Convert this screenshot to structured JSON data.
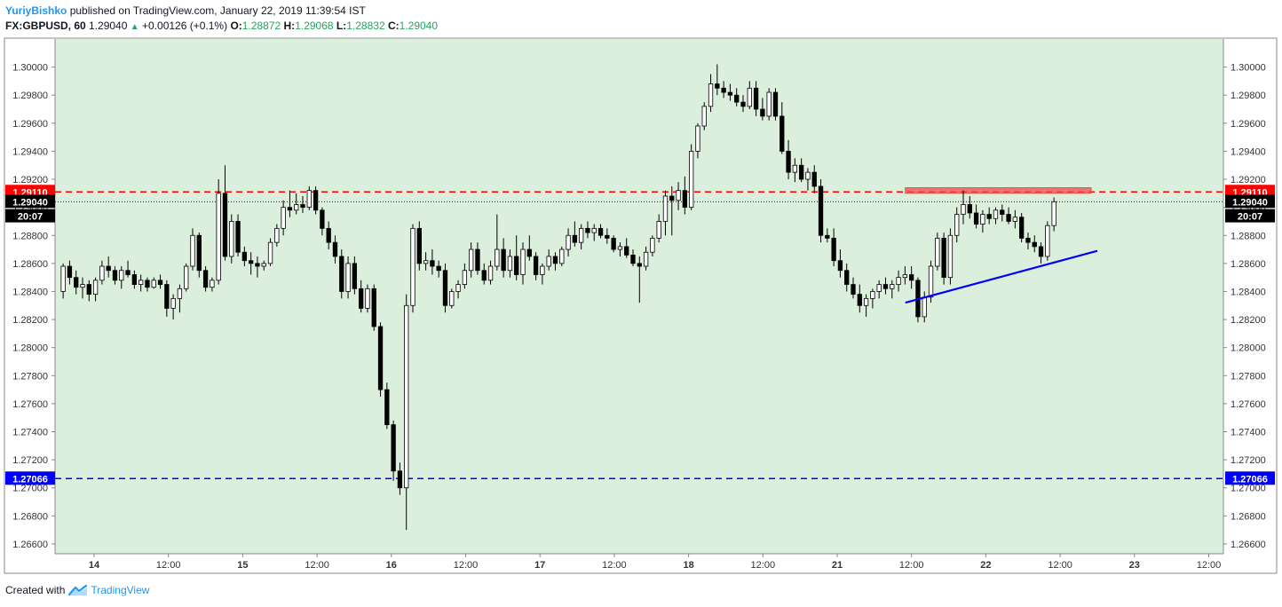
{
  "header": {
    "author": "YuriyBishko",
    "published_text": "published on TradingView.com, January 22, 2019 11:39:54 IST",
    "symbol": "FX:GBPUSD, 60",
    "last": "1.29040",
    "change": "+0.00126 (+0.1%)",
    "o_label": "O:",
    "o_value": "1.28872",
    "h_label": "H:",
    "h_value": "1.29068",
    "l_label": "L:",
    "l_value": "1.28832",
    "c_label": "C:",
    "c_value": "1.29040"
  },
  "footer": {
    "created_with": "Created with",
    "brand": "TradingView"
  },
  "colors": {
    "background": "#dcefdc",
    "up": "#ffffff",
    "down": "#000000",
    "resistance": "#ff0000",
    "support": "#0000ff",
    "zone": "#f24b4b",
    "trendline": "#0000ff"
  },
  "chart_data": {
    "type": "candlestick",
    "symbol": "GBPUSD",
    "timeframe": "60",
    "ylim": [
      1.2653,
      1.302
    ],
    "y_ticks": [
      "1.30000",
      "1.29800",
      "1.29600",
      "1.29400",
      "1.29200",
      "1.29000",
      "1.28800",
      "1.28600",
      "1.28400",
      "1.28200",
      "1.28000",
      "1.27800",
      "1.27600",
      "1.27400",
      "1.27200",
      "1.27000",
      "1.26800",
      "1.26600"
    ],
    "x_ticks": [
      "14",
      "12:00",
      "15",
      "12:00",
      "16",
      "12:00",
      "17",
      "12:00",
      "18",
      "12:00",
      "21",
      "12:00",
      "22",
      "12:00",
      "23",
      "12:00"
    ],
    "price_labels": [
      {
        "text": "1.29110",
        "value": 1.2911,
        "color": "#ff0000"
      },
      {
        "text": "1.29040",
        "value": 1.2904,
        "color": "#000000"
      },
      {
        "text": "20:07",
        "value": 1.28937,
        "color": "#000000"
      },
      {
        "text": "1.27066",
        "value": 1.27066,
        "color": "#0000ff"
      }
    ],
    "horizontal_lines": [
      {
        "value": 1.2911,
        "color": "#ff0000",
        "style": "dashed"
      },
      {
        "value": 1.27066,
        "color": "#0000ff",
        "style": "dashed"
      },
      {
        "value": 1.2904,
        "color": "#000000",
        "style": "dotted"
      }
    ],
    "zone": {
      "x_start": "21 11:00",
      "x_end": "22 17:00",
      "y_from": 1.291,
      "y_to": 1.2914
    },
    "trendline": {
      "start": {
        "x": "21 11:00",
        "y": 1.2832
      },
      "end": {
        "x": "22 18:00",
        "y": 1.2869
      }
    },
    "candles": [
      [
        1.284,
        1.286,
        1.2835,
        1.2858
      ],
      [
        1.2858,
        1.2862,
        1.2845,
        1.285
      ],
      [
        1.285,
        1.2855,
        1.2838,
        1.2843
      ],
      [
        1.2843,
        1.285,
        1.2835,
        1.2845
      ],
      [
        1.2845,
        1.2848,
        1.2833,
        1.2838
      ],
      [
        1.2838,
        1.285,
        1.2833,
        1.2848
      ],
      [
        1.2848,
        1.2862,
        1.2845,
        1.2858
      ],
      [
        1.2858,
        1.2865,
        1.285,
        1.2855
      ],
      [
        1.2855,
        1.2858,
        1.2845,
        1.2848
      ],
      [
        1.2848,
        1.2858,
        1.2842,
        1.2855
      ],
      [
        1.2855,
        1.2862,
        1.285,
        1.2852
      ],
      [
        1.2852,
        1.2855,
        1.2842,
        1.2845
      ],
      [
        1.2845,
        1.2852,
        1.284,
        1.2848
      ],
      [
        1.2848,
        1.285,
        1.284,
        1.2843
      ],
      [
        1.2843,
        1.285,
        1.2842,
        1.2848
      ],
      [
        1.2848,
        1.2852,
        1.2842,
        1.2845
      ],
      [
        1.2845,
        1.2848,
        1.2822,
        1.2828
      ],
      [
        1.2828,
        1.2838,
        1.282,
        1.2835
      ],
      [
        1.2835,
        1.2845,
        1.2825,
        1.2842
      ],
      [
        1.2842,
        1.286,
        1.284,
        1.2858
      ],
      [
        1.2858,
        1.2885,
        1.2855,
        1.288
      ],
      [
        1.288,
        1.2882,
        1.285,
        1.2855
      ],
      [
        1.2855,
        1.2858,
        1.284,
        1.2843
      ],
      [
        1.2843,
        1.285,
        1.284,
        1.2848
      ],
      [
        1.2848,
        1.292,
        1.2845,
        1.291
      ],
      [
        1.291,
        1.293,
        1.2862,
        1.2865
      ],
      [
        1.2865,
        1.2895,
        1.286,
        1.289
      ],
      [
        1.289,
        1.2895,
        1.2865,
        1.2868
      ],
      [
        1.2868,
        1.2872,
        1.2858,
        1.2862
      ],
      [
        1.2862,
        1.2868,
        1.2852,
        1.286
      ],
      [
        1.286,
        1.2865,
        1.285,
        1.2858
      ],
      [
        1.2858,
        1.2862,
        1.2855,
        1.286
      ],
      [
        1.286,
        1.2878,
        1.2858,
        1.2875
      ],
      [
        1.2875,
        1.2888,
        1.2872,
        1.2885
      ],
      [
        1.2885,
        1.2905,
        1.288,
        1.29
      ],
      [
        1.29,
        1.2912,
        1.2893,
        1.2898
      ],
      [
        1.2898,
        1.291,
        1.2895,
        1.2902
      ],
      [
        1.2902,
        1.2908,
        1.2896,
        1.29
      ],
      [
        1.29,
        1.2915,
        1.2898,
        1.2912
      ],
      [
        1.2912,
        1.2915,
        1.2895,
        1.2898
      ],
      [
        1.2898,
        1.29,
        1.288,
        1.2885
      ],
      [
        1.2885,
        1.289,
        1.287,
        1.2875
      ],
      [
        1.2875,
        1.288,
        1.286,
        1.2865
      ],
      [
        1.2865,
        1.287,
        1.2835,
        1.284
      ],
      [
        1.284,
        1.2865,
        1.2835,
        1.286
      ],
      [
        1.286,
        1.2865,
        1.2838,
        1.2842
      ],
      [
        1.2842,
        1.2848,
        1.2825,
        1.2828
      ],
      [
        1.2828,
        1.2845,
        1.2825,
        1.2842
      ],
      [
        1.2842,
        1.2845,
        1.2812,
        1.2815
      ],
      [
        1.2815,
        1.2818,
        1.2765,
        1.277
      ],
      [
        1.277,
        1.2775,
        1.2742,
        1.2745
      ],
      [
        1.2745,
        1.2748,
        1.2705,
        1.2712
      ],
      [
        1.2712,
        1.2718,
        1.2695,
        1.27
      ],
      [
        1.27,
        1.2838,
        1.267,
        1.283
      ],
      [
        1.283,
        1.2888,
        1.2825,
        1.2885
      ],
      [
        1.2885,
        1.289,
        1.2855,
        1.286
      ],
      [
        1.286,
        1.2868,
        1.2855,
        1.2862
      ],
      [
        1.2862,
        1.287,
        1.2852,
        1.2858
      ],
      [
        1.2858,
        1.2862,
        1.285,
        1.2855
      ],
      [
        1.2855,
        1.286,
        1.2825,
        1.283
      ],
      [
        1.283,
        1.2842,
        1.2828,
        1.284
      ],
      [
        1.284,
        1.2848,
        1.2835,
        1.2845
      ],
      [
        1.2845,
        1.286,
        1.2842,
        1.2855
      ],
      [
        1.2855,
        1.2875,
        1.285,
        1.287
      ],
      [
        1.287,
        1.2875,
        1.2852,
        1.2855
      ],
      [
        1.2855,
        1.286,
        1.2845,
        1.2848
      ],
      [
        1.2848,
        1.2862,
        1.2845,
        1.2858
      ],
      [
        1.2858,
        1.2895,
        1.2855,
        1.287
      ],
      [
        1.287,
        1.2878,
        1.285,
        1.2855
      ],
      [
        1.2855,
        1.287,
        1.285,
        1.2865
      ],
      [
        1.2865,
        1.288,
        1.2848,
        1.2852
      ],
      [
        1.2852,
        1.2875,
        1.2845,
        1.287
      ],
      [
        1.287,
        1.288,
        1.2862,
        1.2865
      ],
      [
        1.2865,
        1.2868,
        1.2848,
        1.2852
      ],
      [
        1.2852,
        1.286,
        1.2845,
        1.2858
      ],
      [
        1.2858,
        1.287,
        1.2855,
        1.2865
      ],
      [
        1.2865,
        1.2868,
        1.2855,
        1.286
      ],
      [
        1.286,
        1.2872,
        1.2858,
        1.287
      ],
      [
        1.287,
        1.2885,
        1.2865,
        1.288
      ],
      [
        1.288,
        1.289,
        1.2872,
        1.2875
      ],
      [
        1.2875,
        1.2888,
        1.287,
        1.2885
      ],
      [
        1.2885,
        1.289,
        1.2878,
        1.2882
      ],
      [
        1.2882,
        1.2888,
        1.2876,
        1.2885
      ],
      [
        1.2885,
        1.2888,
        1.2878,
        1.288
      ],
      [
        1.288,
        1.2885,
        1.2874,
        1.2878
      ],
      [
        1.2878,
        1.288,
        1.2868,
        1.287
      ],
      [
        1.287,
        1.2875,
        1.2865,
        1.2872
      ],
      [
        1.2872,
        1.2878,
        1.2864,
        1.2866
      ],
      [
        1.2866,
        1.287,
        1.2858,
        1.286
      ],
      [
        1.286,
        1.2865,
        1.2832,
        1.2858
      ],
      [
        1.2858,
        1.2872,
        1.2855,
        1.2868
      ],
      [
        1.2868,
        1.288,
        1.2865,
        1.2878
      ],
      [
        1.2878,
        1.2895,
        1.2875,
        1.289
      ],
      [
        1.289,
        1.2912,
        1.288,
        1.2908
      ],
      [
        1.2908,
        1.2915,
        1.288,
        1.2905
      ],
      [
        1.2905,
        1.2918,
        1.2898,
        1.2912
      ],
      [
        1.2912,
        1.2922,
        1.2895,
        1.29
      ],
      [
        1.29,
        1.2945,
        1.2898,
        1.294
      ],
      [
        1.294,
        1.296,
        1.2935,
        1.2958
      ],
      [
        1.2958,
        1.2975,
        1.2955,
        1.2972
      ],
      [
        1.2972,
        1.2995,
        1.2968,
        1.2988
      ],
      [
        1.2988,
        1.3002,
        1.298,
        1.2985
      ],
      [
        1.2985,
        1.299,
        1.2978,
        1.2982
      ],
      [
        1.2982,
        1.2988,
        1.2976,
        1.298
      ],
      [
        1.298,
        1.2985,
        1.2972,
        1.2975
      ],
      [
        1.2975,
        1.298,
        1.2968,
        1.2972
      ],
      [
        1.2972,
        1.299,
        1.297,
        1.2985
      ],
      [
        1.2985,
        1.299,
        1.2965,
        1.297
      ],
      [
        1.297,
        1.2978,
        1.2962,
        1.2965
      ],
      [
        1.2965,
        1.2985,
        1.2962,
        1.2982
      ],
      [
        1.2982,
        1.2985,
        1.2962,
        1.2965
      ],
      [
        1.2965,
        1.2975,
        1.2938,
        1.294
      ],
      [
        1.294,
        1.2948,
        1.292,
        1.2925
      ],
      [
        1.2925,
        1.2935,
        1.2918,
        1.293
      ],
      [
        1.293,
        1.2935,
        1.2918,
        1.292
      ],
      [
        1.292,
        1.2928,
        1.2912,
        1.2925
      ],
      [
        1.2925,
        1.293,
        1.291,
        1.2915
      ],
      [
        1.2915,
        1.292,
        1.2875,
        1.288
      ],
      [
        1.288,
        1.2885,
        1.2875,
        1.2878
      ],
      [
        1.2878,
        1.2885,
        1.2858,
        1.2862
      ],
      [
        1.2862,
        1.287,
        1.285,
        1.2855
      ],
      [
        1.2855,
        1.286,
        1.284,
        1.2845
      ],
      [
        1.2845,
        1.285,
        1.2835,
        1.2838
      ],
      [
        1.2838,
        1.2845,
        1.2825,
        1.283
      ],
      [
        1.283,
        1.2838,
        1.2822,
        1.2835
      ],
      [
        1.2835,
        1.2842,
        1.2828,
        1.284
      ],
      [
        1.284,
        1.2848,
        1.2835,
        1.2845
      ],
      [
        1.2845,
        1.285,
        1.2838,
        1.2842
      ],
      [
        1.2842,
        1.2848,
        1.2835,
        1.2845
      ],
      [
        1.2845,
        1.2855,
        1.284,
        1.285
      ],
      [
        1.285,
        1.2858,
        1.2845,
        1.2852
      ],
      [
        1.2852,
        1.2858,
        1.2842,
        1.2848
      ],
      [
        1.2848,
        1.285,
        1.2818,
        1.2822
      ],
      [
        1.2822,
        1.284,
        1.2818,
        1.2836
      ],
      [
        1.2836,
        1.2862,
        1.2832,
        1.2858
      ],
      [
        1.2858,
        1.2882,
        1.2855,
        1.2878
      ],
      [
        1.2878,
        1.2882,
        1.2845,
        1.285
      ],
      [
        1.285,
        1.2885,
        1.2845,
        1.288
      ],
      [
        1.288,
        1.29,
        1.2875,
        1.2895
      ],
      [
        1.2895,
        1.2912,
        1.2888,
        1.2902
      ],
      [
        1.2902,
        1.2908,
        1.2892,
        1.2896
      ],
      [
        1.2896,
        1.2902,
        1.2885,
        1.2888
      ],
      [
        1.2888,
        1.2898,
        1.2882,
        1.2895
      ],
      [
        1.2895,
        1.29,
        1.2888,
        1.2892
      ],
      [
        1.2892,
        1.29,
        1.2888,
        1.2898
      ],
      [
        1.2898,
        1.2902,
        1.289,
        1.2895
      ],
      [
        1.2895,
        1.29,
        1.2888,
        1.289
      ],
      [
        1.289,
        1.2898,
        1.2885,
        1.2893
      ],
      [
        1.2893,
        1.2896,
        1.2875,
        1.2878
      ],
      [
        1.2878,
        1.2882,
        1.287,
        1.2875
      ],
      [
        1.2875,
        1.288,
        1.2868,
        1.2872
      ],
      [
        1.2872,
        1.2875,
        1.286,
        1.2865
      ],
      [
        1.2865,
        1.289,
        1.2862,
        1.2887
      ],
      [
        1.2887,
        1.2907,
        1.2883,
        1.2904
      ]
    ]
  }
}
